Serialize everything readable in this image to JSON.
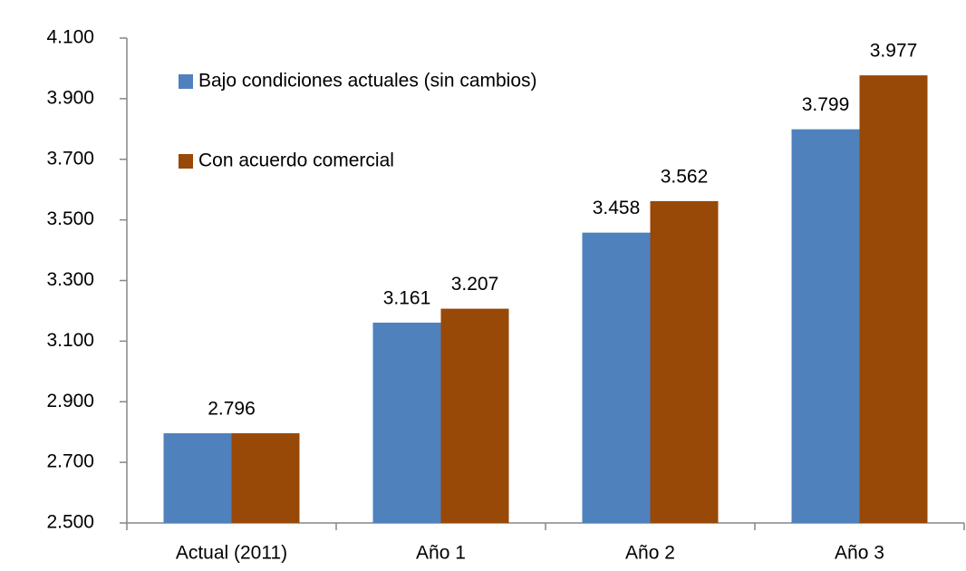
{
  "chart_data": {
    "type": "bar",
    "categories": [
      "Actual (2011)",
      "Año 1",
      "Año 2",
      "Año 3"
    ],
    "series": [
      {
        "name": "Bajo condiciones actuales (sin cambios)",
        "color": "#4f81bd",
        "values": [
          2796,
          3161,
          3458,
          3799
        ],
        "value_labels": [
          "2.796",
          "3.161",
          "3.458",
          "3.799"
        ]
      },
      {
        "name": "Con acuerdo comercial",
        "color": "#984807",
        "values": [
          2796,
          3207,
          3562,
          3977
        ],
        "value_labels": [
          null,
          "3.207",
          "3.562",
          "3.977"
        ]
      }
    ],
    "ylim": [
      2500,
      4100
    ],
    "yticks": [
      {
        "value": 2500,
        "label": "2.500"
      },
      {
        "value": 2700,
        "label": "2.700"
      },
      {
        "value": 2900,
        "label": "2.900"
      },
      {
        "value": 3100,
        "label": "3.100"
      },
      {
        "value": 3300,
        "label": "3.300"
      },
      {
        "value": 3500,
        "label": "3.500"
      },
      {
        "value": 3700,
        "label": "3.700"
      },
      {
        "value": 3900,
        "label": "3.900"
      },
      {
        "value": 4100,
        "label": "4.100"
      }
    ],
    "legend": "upper left",
    "grid": false
  }
}
